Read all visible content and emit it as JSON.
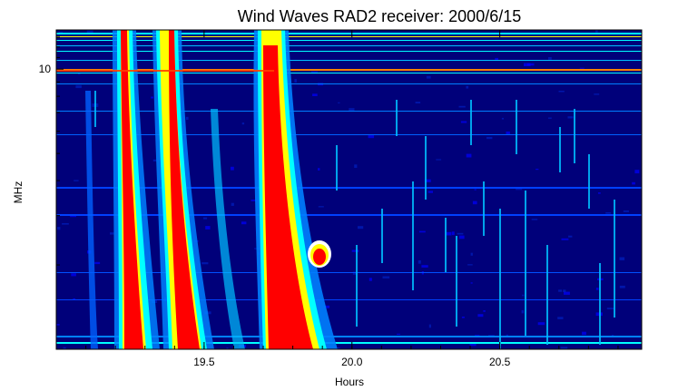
{
  "chart_data": {
    "type": "heatmap",
    "title": "Wind Waves RAD2 receiver: 2000/6/15",
    "xlabel": "Hours",
    "ylabel": "MHz",
    "xlim": [
      19.0,
      20.98
    ],
    "x_ticks": [
      19.5,
      20.0,
      20.5
    ],
    "x_tick_labels": [
      "19.5",
      "20.0",
      "20.5"
    ],
    "y_scale": "log",
    "ylim": [
      1.0,
      13.8
    ],
    "y_ticks": [
      10
    ],
    "y_tick_labels": [
      "10"
    ],
    "colors": {
      "background": "#00007a",
      "low": "#0000ff",
      "mid": "#00ffff",
      "high": "#ffff00",
      "max": "#ff0000"
    },
    "bursts": [
      {
        "x_start": 19.22,
        "x_end": 19.26,
        "intensity": "max"
      },
      {
        "x_start": 19.39,
        "x_end": 19.45,
        "intensity": "max"
      },
      {
        "x_start": 19.72,
        "x_end": 19.8,
        "intensity": "max"
      }
    ],
    "grid": false
  }
}
